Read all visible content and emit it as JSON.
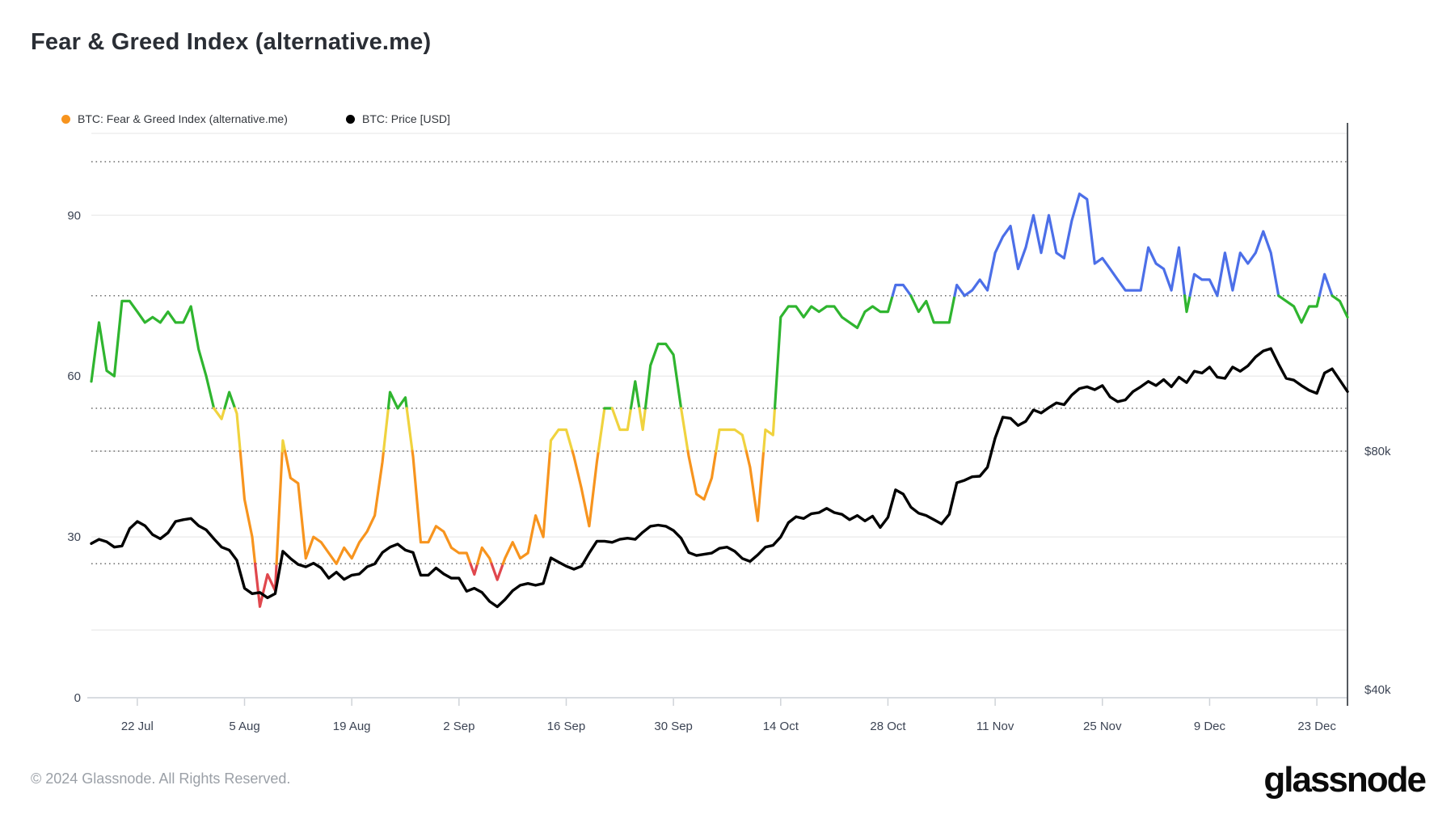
{
  "header": {
    "title": "Fear & Greed Index (alternative.me)"
  },
  "legend": [
    {
      "label": "BTC: Fear & Greed Index (alternative.me)",
      "color": "#F7941E"
    },
    {
      "label": "BTC: Price [USD]",
      "color": "#000000"
    }
  ],
  "footer": {
    "copyright": "© 2024 Glassnode. All Rights Reserved.",
    "brand": "glassnode"
  },
  "chart_data": {
    "type": "line",
    "title": "Fear & Greed Index (alternative.me)",
    "x_start_date": "16 Jul 2024",
    "x_end_date": "27 Dec 2024",
    "x_interval_days": 1,
    "x_tick_labels": [
      "22 Jul",
      "5 Aug",
      "19 Aug",
      "2 Sep",
      "16 Sep",
      "30 Sep",
      "14 Oct",
      "28 Oct",
      "11 Nov",
      "25 Nov",
      "9 Dec",
      "23 Dec"
    ],
    "x_tick_start_index": 6,
    "x_tick_every_days": 14,
    "left_axis": {
      "tick_values": [
        90,
        60,
        30,
        0
      ],
      "top_value": 105
    },
    "right_axis": {
      "labels": [
        {
          "text": "$80k",
          "value": 80
        },
        {
          "text": "$40k",
          "value": 40
        }
      ],
      "grid_values": [
        80,
        50
      ]
    },
    "fg_threshold_gridlines": [
      100,
      75,
      54,
      46,
      25
    ],
    "grid_style": {
      "dotted_color": "#6e6e6e",
      "solid_color": "#ededed",
      "baseline_color": "#d8dce1",
      "tick_color": "#cfd3d8",
      "right_axis_line_color": "#55595f",
      "label_color": "#3c4454"
    },
    "series": [
      {
        "name": "BTC: Fear & Greed Index (alternative.me)",
        "axis": "left",
        "color_bands": [
          {
            "below": 25,
            "color": "#E0474D"
          },
          {
            "below": 46,
            "color": "#F7941E"
          },
          {
            "below": 54,
            "color": "#F0D33F"
          },
          {
            "below": 75.001,
            "color": "#2FB52F"
          },
          {
            "below": 999,
            "color": "#4C6FE8"
          }
        ],
        "values": [
          59,
          70,
          61,
          60,
          74,
          74,
          72,
          70,
          71,
          70,
          72,
          70,
          70,
          73,
          65,
          60,
          54,
          52,
          57,
          53,
          37,
          30,
          17,
          23,
          20,
          48,
          41,
          40,
          26,
          30,
          29,
          27,
          25,
          28,
          26,
          29,
          31,
          34,
          44,
          57,
          54,
          56,
          45,
          29,
          29,
          32,
          31,
          28,
          27,
          27,
          23,
          28,
          26,
          22,
          26,
          29,
          26,
          27,
          34,
          30,
          48,
          50,
          50,
          45,
          39,
          32,
          44,
          54,
          54,
          50,
          50,
          59,
          50,
          62,
          66,
          66,
          64,
          54,
          45,
          38,
          37,
          41,
          50,
          50,
          50,
          49,
          43,
          33,
          50,
          49,
          71,
          73,
          73,
          71,
          73,
          72,
          73,
          73,
          71,
          70,
          69,
          72,
          73,
          72,
          72,
          77,
          77,
          75,
          72,
          74,
          70,
          70,
          70,
          77,
          75,
          76,
          78,
          76,
          83,
          86,
          88,
          80,
          84,
          90,
          83,
          90,
          83,
          82,
          89,
          94,
          93,
          81,
          82,
          80,
          78,
          76,
          76,
          76,
          84,
          81,
          80,
          76,
          84,
          72,
          79,
          78,
          78,
          75,
          83,
          76,
          83,
          81,
          83,
          87,
          83,
          75,
          74,
          73,
          70,
          73,
          73,
          79,
          75,
          74,
          71
        ]
      },
      {
        "name": "BTC: Price [USD]",
        "axis": "right",
        "color": "#000000",
        "unit": "USD (thousands)",
        "values": [
          64.5,
          65.2,
          64.8,
          63.9,
          64.1,
          67.0,
          68.2,
          67.5,
          66.0,
          65.3,
          66.3,
          68.2,
          68.5,
          68.7,
          67.5,
          66.8,
          65.3,
          63.9,
          63.4,
          61.7,
          57.0,
          56.1,
          56.3,
          55.4,
          56.1,
          63.2,
          62.0,
          61.0,
          60.6,
          61.2,
          60.4,
          58.7,
          59.7,
          58.5,
          59.2,
          59.4,
          60.6,
          61.1,
          63.0,
          63.9,
          64.4,
          63.4,
          63.0,
          59.2,
          59.2,
          60.4,
          59.4,
          58.7,
          58.7,
          56.5,
          57.0,
          56.3,
          54.8,
          53.9,
          55.1,
          56.6,
          57.5,
          57.8,
          57.5,
          57.8,
          62.1,
          61.4,
          60.7,
          60.2,
          60.7,
          62.9,
          64.9,
          64.9,
          64.7,
          65.2,
          65.4,
          65.2,
          66.4,
          67.4,
          67.6,
          67.4,
          66.7,
          65.4,
          63.0,
          62.5,
          62.7,
          62.9,
          63.7,
          63.9,
          63.2,
          62.0,
          61.5,
          62.6,
          63.9,
          64.2,
          65.6,
          68.0,
          69.0,
          68.7,
          69.5,
          69.7,
          70.4,
          69.7,
          69.4,
          68.5,
          69.2,
          68.3,
          69.1,
          67.2,
          68.9,
          73.5,
          72.8,
          70.6,
          69.6,
          69.2,
          68.5,
          67.8,
          69.4,
          74.7,
          75.1,
          75.7,
          75.8,
          77.3,
          82.2,
          85.7,
          85.5,
          84.3,
          85.0,
          86.9,
          86.4,
          87.3,
          88.1,
          87.8,
          89.4,
          90.5,
          90.8,
          90.3,
          91.0,
          89.1,
          88.3,
          88.6,
          90.0,
          90.8,
          91.7,
          91.0,
          92.0,
          90.8,
          92.4,
          91.5,
          93.4,
          93.1,
          94.1,
          92.4,
          92.2,
          94.1,
          93.4,
          94.3,
          95.8,
          96.8,
          97.2,
          94.6,
          92.2,
          91.9,
          91.0,
          90.2,
          89.7,
          93.1,
          93.8,
          91.9,
          90.0
        ]
      }
    ]
  }
}
